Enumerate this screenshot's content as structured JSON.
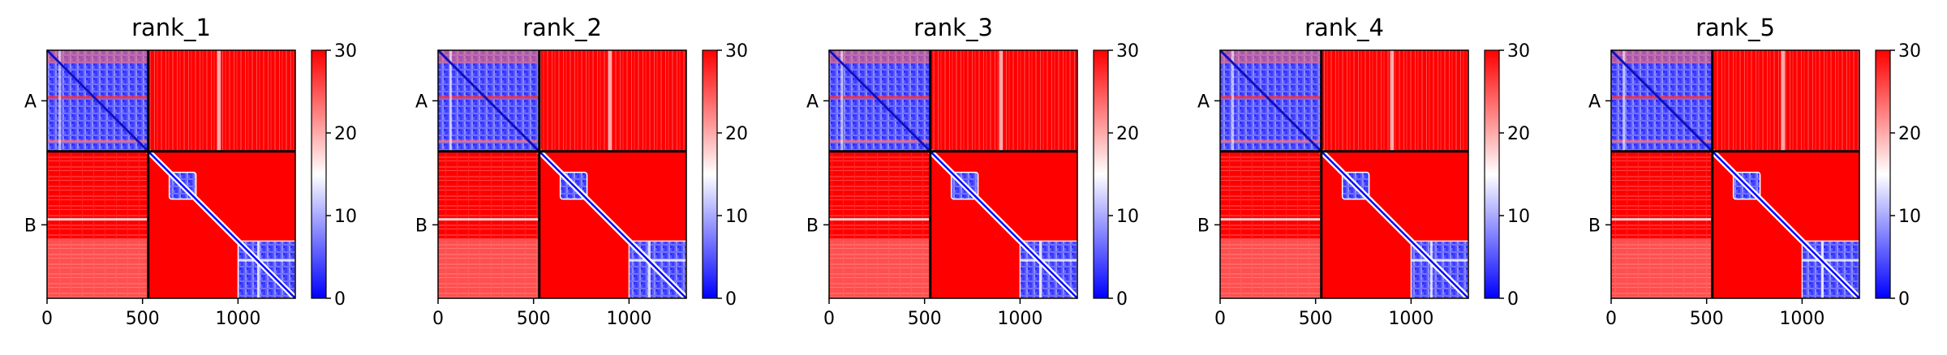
{
  "chart_data": [
    {
      "type": "heatmap",
      "title": "rank_1",
      "x_ticks": [
        0,
        500,
        1000
      ],
      "xlim": [
        0,
        1300
      ],
      "y_tick_labels": [
        "A",
        "B"
      ],
      "chains": [
        {
          "name": "A",
          "start": 0,
          "end": 530
        },
        {
          "name": "B",
          "start": 530,
          "end": 1300
        }
      ],
      "colorbar": {
        "range": [
          0,
          30
        ],
        "ticks": [
          0,
          10,
          20,
          30
        ],
        "colormap": "bwr"
      },
      "axis_color": "#000000"
    },
    {
      "type": "heatmap",
      "title": "rank_2",
      "x_ticks": [
        0,
        500,
        1000
      ],
      "xlim": [
        0,
        1300
      ],
      "y_tick_labels": [
        "A",
        "B"
      ],
      "chains": [
        {
          "name": "A",
          "start": 0,
          "end": 530
        },
        {
          "name": "B",
          "start": 530,
          "end": 1300
        }
      ],
      "colorbar": {
        "range": [
          0,
          30
        ],
        "ticks": [
          0,
          10,
          20,
          30
        ],
        "colormap": "bwr"
      },
      "axis_color": "#000000"
    },
    {
      "type": "heatmap",
      "title": "rank_3",
      "x_ticks": [
        0,
        500,
        1000
      ],
      "xlim": [
        0,
        1300
      ],
      "y_tick_labels": [
        "A",
        "B"
      ],
      "chains": [
        {
          "name": "A",
          "start": 0,
          "end": 530
        },
        {
          "name": "B",
          "start": 530,
          "end": 1300
        }
      ],
      "colorbar": {
        "range": [
          0,
          30
        ],
        "ticks": [
          0,
          10,
          20,
          30
        ],
        "colormap": "bwr"
      },
      "axis_color": "#000000"
    },
    {
      "type": "heatmap",
      "title": "rank_4",
      "x_ticks": [
        0,
        500,
        1000
      ],
      "xlim": [
        0,
        1300
      ],
      "y_tick_labels": [
        "A",
        "B"
      ],
      "chains": [
        {
          "name": "A",
          "start": 0,
          "end": 530
        },
        {
          "name": "B",
          "start": 530,
          "end": 1300
        }
      ],
      "colorbar": {
        "range": [
          0,
          30
        ],
        "ticks": [
          0,
          10,
          20,
          30
        ],
        "colormap": "bwr"
      },
      "axis_color": "#000000"
    },
    {
      "type": "heatmap",
      "title": "rank_5",
      "x_ticks": [
        0,
        500,
        1000
      ],
      "xlim": [
        0,
        1300
      ],
      "y_tick_labels": [
        "A",
        "B"
      ],
      "chains": [
        {
          "name": "A",
          "start": 0,
          "end": 530
        },
        {
          "name": "B",
          "start": 530,
          "end": 1300
        }
      ],
      "colorbar": {
        "range": [
          0,
          30
        ],
        "ticks": [
          0,
          10,
          20,
          30
        ],
        "colormap": "bwr"
      },
      "axis_color": "#000000"
    }
  ]
}
